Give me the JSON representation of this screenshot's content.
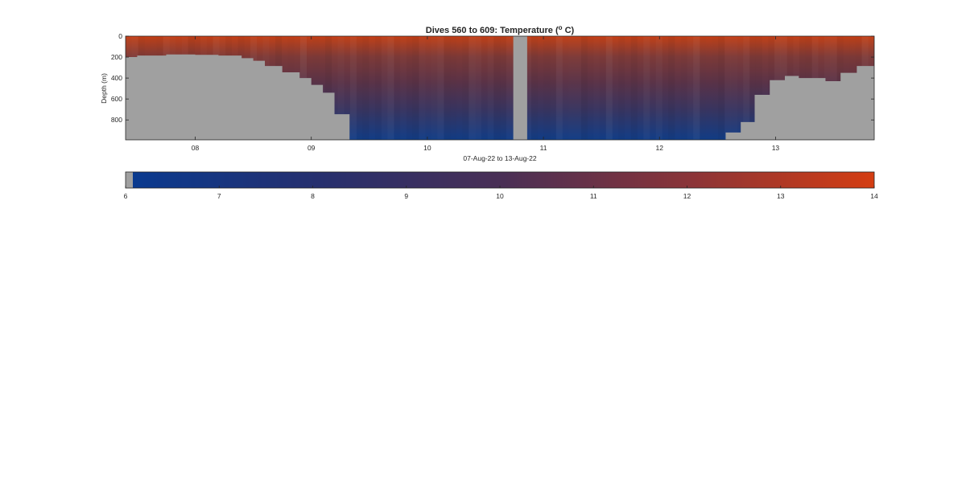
{
  "chart_data": [
    {
      "type": "heatmap",
      "title": "Dives 560 to 609: Temperature (",
      "title_sup": "o",
      "title_end": " C)",
      "xlabel": "07-Aug-22 to 13-Aug-22",
      "ylabel": "Depth (m)",
      "x_unit": "day of August 2022",
      "xlim": [
        7.4,
        13.85
      ],
      "ylim": [
        990,
        0
      ],
      "y_reversed": true,
      "x_ticks": [
        8,
        9,
        10,
        11,
        12,
        13
      ],
      "x_tick_labels": [
        "08",
        "09",
        "10",
        "11",
        "12",
        "13"
      ],
      "y_ticks": [
        0,
        200,
        400,
        600,
        800
      ],
      "y_tick_labels": [
        "0",
        "200",
        "400",
        "600",
        "800"
      ],
      "colormap": {
        "low": "#0a3a8f",
        "mid": "#4a2f55",
        "high": "#d43d12"
      },
      "no_data_color": "#a0a0a0",
      "surface_temperature": 13.8,
      "temperature_at_200m": 11.6,
      "deep_temperature": 6.5,
      "data_gap": {
        "start": 10.74,
        "end": 10.86
      },
      "max_dive_depth": [
        {
          "x": 7.4,
          "depth": 200
        },
        {
          "x": 7.5,
          "depth": 185
        },
        {
          "x": 7.75,
          "depth": 175
        },
        {
          "x": 8.0,
          "depth": 178
        },
        {
          "x": 8.2,
          "depth": 185
        },
        {
          "x": 8.4,
          "depth": 210
        },
        {
          "x": 8.5,
          "depth": 235
        },
        {
          "x": 8.6,
          "depth": 285
        },
        {
          "x": 8.75,
          "depth": 345
        },
        {
          "x": 8.9,
          "depth": 400
        },
        {
          "x": 9.0,
          "depth": 465
        },
        {
          "x": 9.1,
          "depth": 540
        },
        {
          "x": 9.2,
          "depth": 745
        },
        {
          "x": 9.33,
          "depth": 990
        },
        {
          "x": 12.55,
          "depth": 990
        },
        {
          "x": 12.57,
          "depth": 920
        },
        {
          "x": 12.7,
          "depth": 820
        },
        {
          "x": 12.82,
          "depth": 560
        },
        {
          "x": 12.95,
          "depth": 420
        },
        {
          "x": 13.08,
          "depth": 380
        },
        {
          "x": 13.2,
          "depth": 400
        },
        {
          "x": 13.43,
          "depth": 430
        },
        {
          "x": 13.56,
          "depth": 350
        },
        {
          "x": 13.7,
          "depth": 285
        },
        {
          "x": 13.85,
          "depth": 285
        }
      ]
    },
    {
      "type": "colorbar",
      "range": [
        6,
        14
      ],
      "ticks": [
        6,
        7,
        8,
        9,
        10,
        11,
        12,
        13,
        14
      ],
      "tick_labels": [
        "6",
        "7",
        "8",
        "9",
        "10",
        "11",
        "12",
        "13",
        "14"
      ],
      "no_data_value": 6
    }
  ]
}
